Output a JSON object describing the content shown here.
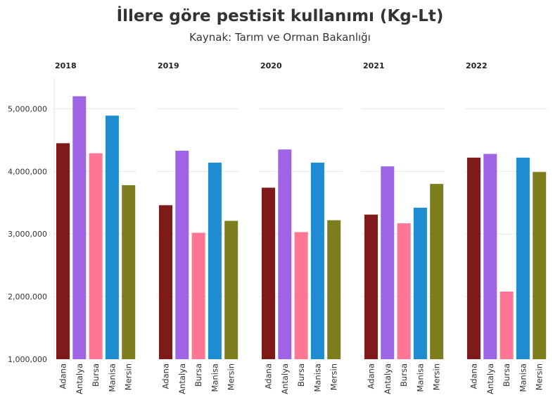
{
  "chart_data": {
    "type": "bar",
    "title": "İllere göre pestisit kullanımı (Kg-Lt)",
    "subtitle": "Kaynak: Tarım ve Orman Bakanlığı",
    "categories": [
      "Adana",
      "Antalya",
      "Bursa",
      "Manisa",
      "Mersin"
    ],
    "y_ticks": [
      "1,000,000",
      "2,000,000",
      "3,000,000",
      "4,000,000",
      "5,000,000"
    ],
    "ylim": [
      1000000,
      5500000
    ],
    "grid": true,
    "legend": "none",
    "colors": {
      "Adana": "#7f1a1a",
      "Antalya": "#9f63e6",
      "Bursa": "#ff7694",
      "Manisa": "#1f8bd0",
      "Mersin": "#7d7d1c"
    },
    "panels": [
      {
        "label": "2018",
        "values": [
          4450000,
          5200000,
          4290000,
          4890000,
          3780000
        ]
      },
      {
        "label": "2019",
        "values": [
          3460000,
          4330000,
          3020000,
          4140000,
          3210000
        ]
      },
      {
        "label": "2020",
        "values": [
          3740000,
          4350000,
          3030000,
          4140000,
          3220000
        ]
      },
      {
        "label": "2021",
        "values": [
          3310000,
          4080000,
          3170000,
          3420000,
          3800000
        ]
      },
      {
        "label": "2022",
        "values": [
          4220000,
          4280000,
          2080000,
          4220000,
          3990000
        ]
      }
    ]
  }
}
